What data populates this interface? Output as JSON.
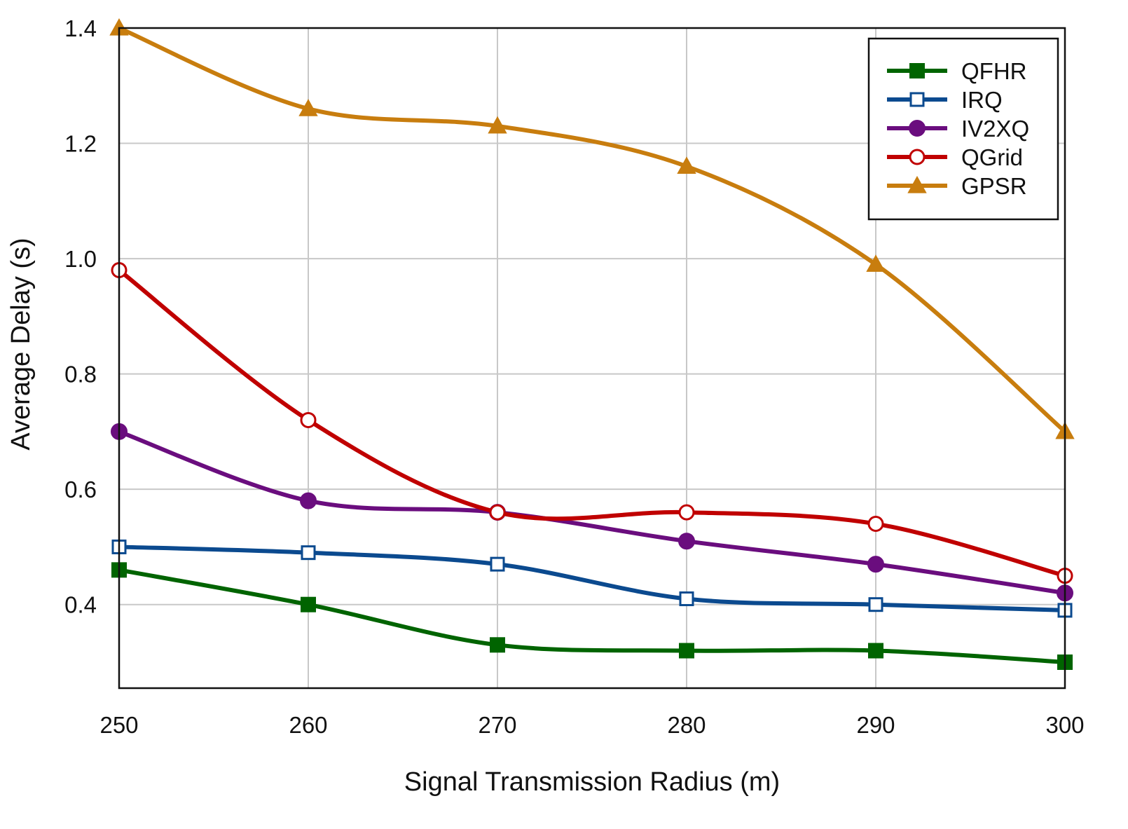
{
  "chart_data": {
    "type": "line",
    "title": "",
    "xlabel": "Signal Transmission Radius (m)",
    "ylabel": "Average Delay (s)",
    "x": [
      250,
      260,
      270,
      280,
      290,
      300
    ],
    "xlim": [
      250,
      300
    ],
    "ylim": [
      0.255,
      1.4
    ],
    "xticks": [
      "250",
      "260",
      "270",
      "280",
      "290",
      "300"
    ],
    "yticks": [
      "0.4",
      "0.6",
      "0.8",
      "1.0",
      "1.2",
      "1.4"
    ],
    "grid": true,
    "legend_position": "top-right",
    "series": [
      {
        "name": "QFHR",
        "color": "#006400",
        "marker": "square-filled",
        "values": [
          0.46,
          0.4,
          0.33,
          0.32,
          0.32,
          0.3
        ]
      },
      {
        "name": "IRQ",
        "color": "#0b4a8f",
        "marker": "square-open",
        "values": [
          0.5,
          0.49,
          0.47,
          0.41,
          0.4,
          0.39
        ]
      },
      {
        "name": "IV2XQ",
        "color": "#6a0d7e",
        "marker": "circle-filled",
        "values": [
          0.7,
          0.58,
          0.56,
          0.51,
          0.47,
          0.42
        ]
      },
      {
        "name": "QGrid",
        "color": "#c00000",
        "marker": "circle-open",
        "values": [
          0.98,
          0.72,
          0.56,
          0.56,
          0.54,
          0.45
        ]
      },
      {
        "name": "GPSR",
        "color": "#c87d0e",
        "marker": "triangle-filled",
        "values": [
          1.4,
          1.26,
          1.23,
          1.16,
          0.99,
          0.7
        ]
      }
    ]
  }
}
